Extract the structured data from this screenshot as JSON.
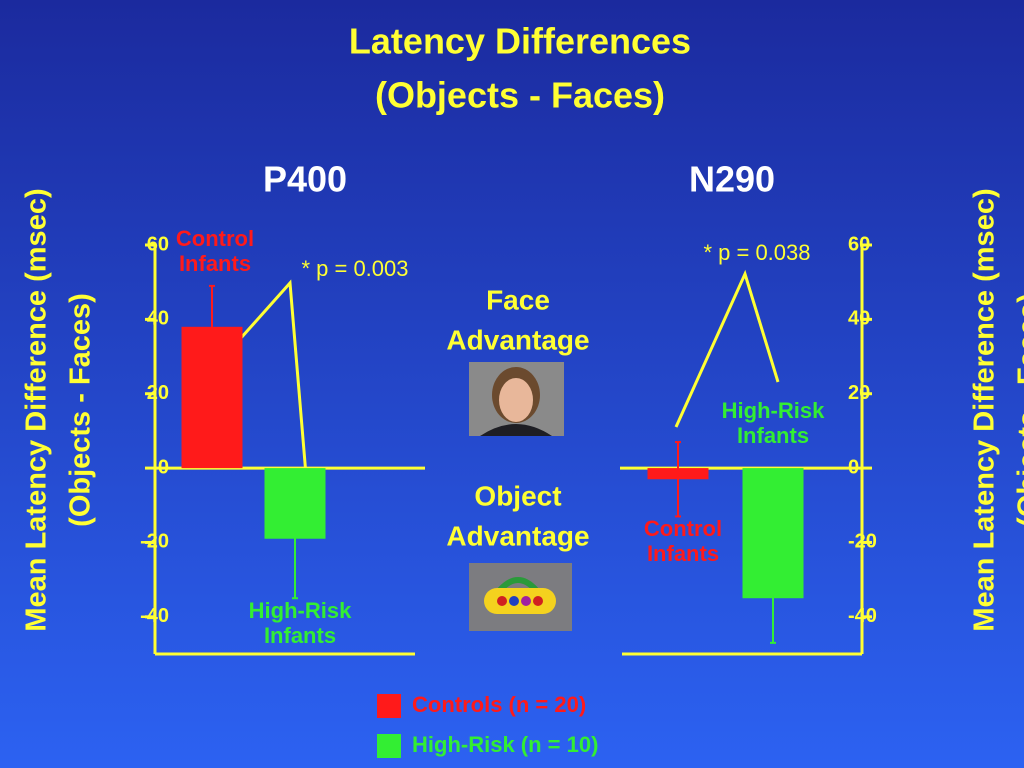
{
  "chart_data": {
    "type": "bar",
    "title": "Latency Differences",
    "subtitle": "(Objects - Faces)",
    "ylabel": [
      "Mean Latency Difference (msec)",
      "(Objects - Faces)"
    ],
    "categories": [
      "P400",
      "N290"
    ],
    "series": [
      {
        "name": "Controls (n = 20)",
        "color": "#ff1a1a",
        "values": [
          38,
          -3
        ],
        "errors": [
          11,
          10
        ]
      },
      {
        "name": "High-Risk (n = 10)",
        "color": "#33ee33",
        "values": [
          -19,
          -35
        ],
        "errors": [
          16,
          12
        ]
      }
    ],
    "bar_labels": [
      [
        [
          "Control",
          "Infants"
        ],
        [
          "High-Risk",
          "Infants"
        ]
      ],
      [
        [
          "Control",
          "Infants"
        ],
        [
          "High-Risk",
          "Infants"
        ]
      ]
    ],
    "pvalues": [
      "* p = 0.003",
      "* p = 0.038"
    ],
    "annotations": [
      [
        "Face",
        "Advantage"
      ],
      [
        "Object",
        "Advantage"
      ]
    ],
    "ylim": [
      -50,
      60
    ],
    "yticks": [
      60,
      40,
      20,
      0,
      -20,
      -40
    ]
  }
}
